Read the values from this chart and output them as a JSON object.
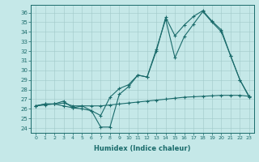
{
  "xlabel": "Humidex (Indice chaleur)",
  "xlim": [
    -0.5,
    23.5
  ],
  "ylim": [
    23.5,
    36.8
  ],
  "yticks": [
    24,
    25,
    26,
    27,
    28,
    29,
    30,
    31,
    32,
    33,
    34,
    35,
    36
  ],
  "xticks": [
    0,
    1,
    2,
    3,
    4,
    5,
    6,
    7,
    8,
    9,
    10,
    11,
    12,
    13,
    14,
    15,
    16,
    17,
    18,
    19,
    20,
    21,
    22,
    23
  ],
  "bg_color": "#c5e8e8",
  "grid_color": "#a0c8c8",
  "line_color": "#1a6b6b",
  "line1_y": [
    26.3,
    26.5,
    26.5,
    26.3,
    26.1,
    26.0,
    25.8,
    24.1,
    24.1,
    27.5,
    28.3,
    29.5,
    29.3,
    32.2,
    35.3,
    31.3,
    33.5,
    34.8,
    36.1,
    35.0,
    34.0,
    31.5,
    29.0,
    27.2
  ],
  "line2_y": [
    26.3,
    26.5,
    26.5,
    26.8,
    26.1,
    26.3,
    25.8,
    25.3,
    27.2,
    28.1,
    28.5,
    29.5,
    29.3,
    32.0,
    35.5,
    33.6,
    34.7,
    35.6,
    36.2,
    35.1,
    34.2,
    31.5,
    29.0,
    27.3
  ],
  "line3_y": [
    26.3,
    26.4,
    26.5,
    26.6,
    26.3,
    26.3,
    26.3,
    26.3,
    26.4,
    26.5,
    26.6,
    26.7,
    26.8,
    26.9,
    27.0,
    27.1,
    27.2,
    27.25,
    27.3,
    27.35,
    27.4,
    27.4,
    27.4,
    27.3
  ]
}
